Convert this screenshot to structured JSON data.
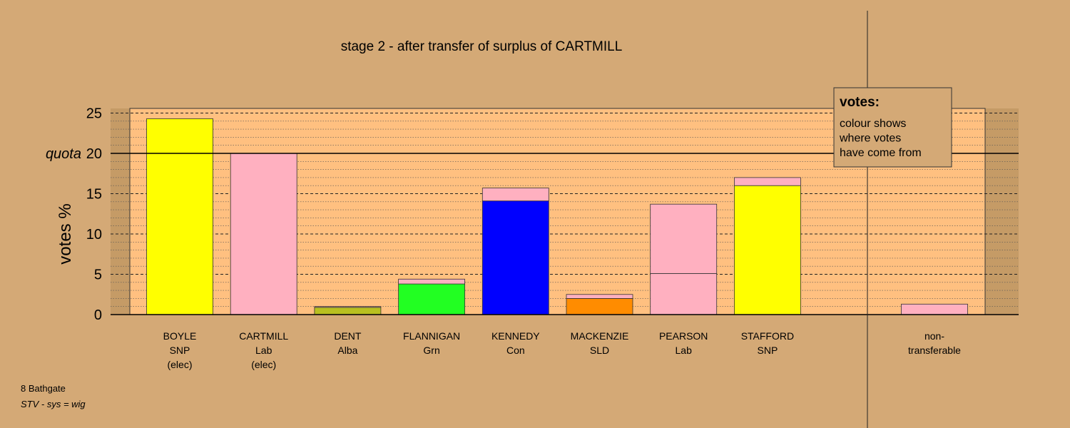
{
  "chart_data": {
    "type": "bar",
    "stacked": true,
    "title": "stage 2 - after transfer of surplus of CARTMILL",
    "ylabel": "votes %",
    "ylim": [
      0,
      25
    ],
    "yticks": [
      0,
      5,
      10,
      15,
      20,
      25
    ],
    "quota": 20,
    "quota_label": "quota",
    "grid": true,
    "candidates": [
      {
        "name": "BOYLE",
        "party": "SNP",
        "status": "(elec)",
        "segments": [
          {
            "value": 24.3,
            "color": "#FFFF00"
          }
        ]
      },
      {
        "name": "CARTMILL",
        "party": "Lab",
        "status": "(elec)",
        "segments": [
          {
            "value": 20.0,
            "color": "#FFB0C0"
          }
        ]
      },
      {
        "name": "DENT",
        "party": "Alba",
        "status": "",
        "segments": [
          {
            "value": 0.9,
            "color": "#B8C020"
          },
          {
            "value": 0.1,
            "color": "#FFB0C0"
          }
        ]
      },
      {
        "name": "FLANNIGAN",
        "party": "Grn",
        "status": "",
        "segments": [
          {
            "value": 3.8,
            "color": "#22FF22"
          },
          {
            "value": 0.6,
            "color": "#FFB0C0"
          }
        ]
      },
      {
        "name": "KENNEDY",
        "party": "Con",
        "status": "",
        "segments": [
          {
            "value": 14.1,
            "color": "#0000FF"
          },
          {
            "value": 1.6,
            "color": "#FFB0C0"
          }
        ]
      },
      {
        "name": "MACKENZIE",
        "party": "SLD",
        "status": "",
        "segments": [
          {
            "value": 2.0,
            "color": "#FF8C00"
          },
          {
            "value": 0.5,
            "color": "#FFB0C0"
          }
        ]
      },
      {
        "name": "PEARSON",
        "party": "Lab",
        "status": "",
        "segments": [
          {
            "value": 5.1,
            "color": "#FFB0C0"
          },
          {
            "value": 8.6,
            "color": "#FFB0C0"
          }
        ]
      },
      {
        "name": "STAFFORD",
        "party": "SNP",
        "status": "",
        "segments": [
          {
            "value": 16.0,
            "color": "#FFFF00"
          },
          {
            "value": 1.0,
            "color": "#FFB0C0"
          }
        ]
      }
    ],
    "nontransferable": {
      "label_line1": "non-",
      "label_line2": "transferable",
      "segments": [
        {
          "value": 1.3,
          "color": "#FFB0C0"
        }
      ]
    },
    "legend": {
      "title": "votes:",
      "lines": [
        "colour shows",
        "where votes",
        "have come from"
      ],
      "placement": "top-right"
    }
  },
  "footer": {
    "constituency": "8 Bathgate",
    "system": "STV - sys = wig"
  },
  "colors": {
    "background": "#D4A976",
    "plot_panel": "#FFC080",
    "outside_band": "#C59B66"
  }
}
